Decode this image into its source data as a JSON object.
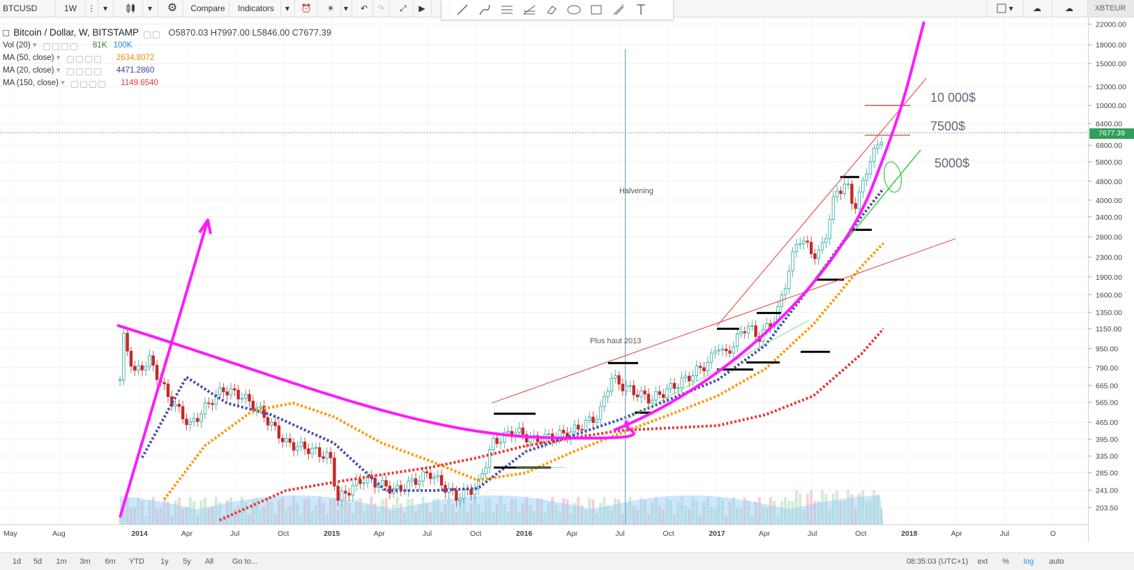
{
  "toolbar": {
    "symbol": "BTCUSD",
    "interval": "1W",
    "compare_label": "Compare",
    "indicators_label": "Indicators",
    "account_label": "XBTEUR"
  },
  "legend": {
    "title": "Bitcoin / Dollar, W, BITSTAMP",
    "open": "O5870.03",
    "high": "H7997.00",
    "low": "L5846.00",
    "close": "C7677.39",
    "vol_label": "Vol (20)",
    "vol_value1": "81K",
    "vol_value2": "100K",
    "ma50_label": "MA (50, close)",
    "ma50_value": "2634.8072",
    "ma20_label": "MA (20, close)",
    "ma20_value": "4471.2860",
    "ma150_label": "MA (150, close)",
    "ma150_value": "1149.6540"
  },
  "annotations": {
    "halvening": "Halvening",
    "high_2013": "Plus haut 2013",
    "target_10000": "10 000$",
    "target_7500": "7500$",
    "target_5000": "5000$"
  },
  "price_label": "7677.39",
  "bottombar": {
    "ranges": [
      "1d",
      "5d",
      "1m",
      "3m",
      "6m",
      "YTD",
      "1y",
      "5y",
      "All"
    ],
    "goto": "Go to...",
    "time": "08:35:03 (UTC+1)",
    "ext": "ext",
    "pct": "%",
    "log": "log",
    "auto": "auto"
  },
  "colors": {
    "up": "#26a69a",
    "down": "#c62828",
    "ma20": "#4d4dad",
    "ma50": "#ff9800",
    "ma150": "#e53935",
    "magenta": "#ff19ff",
    "volume": "#90caf9",
    "accent_log": "#2196f3"
  },
  "chart_data": {
    "type": "line",
    "title": "Bitcoin / Dollar, W, BITSTAMP",
    "xlabel": "",
    "ylabel": "",
    "y_scale": "log",
    "ylim": [
      185,
      22000
    ],
    "x_tick_labels": [
      "May",
      "Aug",
      "2014",
      "Apr",
      "Jul",
      "Oct",
      "2015",
      "Apr",
      "Jul",
      "Oct",
      "2016",
      "Apr",
      "Jul",
      "Oct",
      "2017",
      "Apr",
      "Jul",
      "Oct",
      "2018",
      "Apr",
      "Jul",
      "O"
    ],
    "y_tick_labels": [
      "203.50",
      "241.00",
      "285.00",
      "335.00",
      "395.00",
      "465.00",
      "565.00",
      "665.00",
      "790.00",
      "950.00",
      "1150.00",
      "1350.00",
      "1600.00",
      "1900.00",
      "2300.00",
      "2800.00",
      "3400.00",
      "4000.00",
      "4800.00",
      "5800.00",
      "6800.00",
      "8400.00",
      "10000.00",
      "12000.00",
      "15000.00",
      "18000.00",
      "22000.00"
    ],
    "y_ticks": [
      203.5,
      241,
      285,
      335,
      395,
      465,
      565,
      665,
      790,
      950,
      1150,
      1350,
      1600,
      1900,
      2300,
      2800,
      3400,
      4000,
      4800,
      5800,
      6800,
      8400,
      10000,
      12000,
      15000,
      18000,
      22000
    ],
    "series": [
      {
        "name": "BTCUSD close",
        "x": [
          "2013-11-25",
          "2013-12-02",
          "2013-12-23",
          "2014-01-20",
          "2014-02-24",
          "2014-04-07",
          "2014-05-19",
          "2014-06-09",
          "2014-07-14",
          "2014-08-18",
          "2014-10-06",
          "2014-11-17",
          "2014-12-29",
          "2015-01-12",
          "2015-03-02",
          "2015-05-04",
          "2015-07-06",
          "2015-08-24",
          "2015-10-05",
          "2015-11-02",
          "2015-12-14",
          "2016-01-18",
          "2016-03-28",
          "2016-05-23",
          "2016-06-13",
          "2016-07-11",
          "2016-08-29",
          "2016-10-31",
          "2016-12-19",
          "2017-01-02",
          "2017-01-16",
          "2017-02-27",
          "2017-03-20",
          "2017-04-24",
          "2017-05-22",
          "2017-06-05",
          "2017-07-10",
          "2017-07-24",
          "2017-08-14",
          "2017-09-04",
          "2017-09-18",
          "2017-10-02",
          "2017-10-16",
          "2017-10-30",
          "2017-11-13"
        ],
        "values": [
          700,
          1050,
          750,
          850,
          600,
          450,
          580,
          640,
          600,
          520,
          380,
          360,
          330,
          220,
          270,
          240,
          285,
          225,
          250,
          380,
          430,
          390,
          420,
          500,
          720,
          650,
          580,
          700,
          840,
          1000,
          880,
          1200,
          1050,
          1300,
          2200,
          2800,
          2300,
          2700,
          4300,
          4700,
          3700,
          4400,
          5800,
          6500,
          7677.39
        ]
      },
      {
        "name": "MA (20, close)",
        "x": [
          "2014-01-06",
          "2014-03-31",
          "2014-06-16",
          "2014-09-08",
          "2015-01-05",
          "2015-04-13",
          "2015-07-13",
          "2015-10-05",
          "2016-01-04",
          "2016-04-04",
          "2016-07-04",
          "2016-10-03",
          "2017-01-02",
          "2017-04-03",
          "2017-07-03",
          "2017-10-02",
          "2017-11-13"
        ],
        "values": [
          330,
          720,
          560,
          500,
          380,
          240,
          240,
          245,
          350,
          410,
          480,
          580,
          700,
          980,
          1800,
          3400,
          4471.286
        ]
      },
      {
        "name": "MA (50, close)",
        "x": [
          "2014-02-17",
          "2014-05-05",
          "2014-08-04",
          "2014-10-20",
          "2015-01-05",
          "2015-04-06",
          "2015-07-06",
          "2015-10-05",
          "2016-01-04",
          "2016-04-04",
          "2016-07-04",
          "2016-10-03",
          "2017-01-02",
          "2017-04-03",
          "2017-07-03",
          "2017-10-02",
          "2017-11-13"
        ],
        "values": [
          220,
          370,
          520,
          560,
          490,
          380,
          320,
          265,
          285,
          350,
          420,
          500,
          600,
          780,
          1200,
          2100,
          2634.8072
        ]
      },
      {
        "name": "MA (150, close)",
        "x": [
          "2014-06-02",
          "2014-10-06",
          "2015-01-05",
          "2015-04-06",
          "2015-07-06",
          "2015-10-05",
          "2016-01-04",
          "2016-04-04",
          "2016-07-04",
          "2016-10-03",
          "2017-01-02",
          "2017-04-03",
          "2017-07-03",
          "2017-10-02",
          "2017-11-13"
        ],
        "values": [
          180,
          240,
          260,
          280,
          300,
          330,
          370,
          400,
          430,
          440,
          450,
          500,
          600,
          900,
          1149.654
        ]
      }
    ],
    "annotations": [
      {
        "text": "Halvening",
        "x": "2016-07-11"
      },
      {
        "text": "Plus haut 2013",
        "x": "2016-06-13",
        "y": 1190
      },
      {
        "text": "10 000$",
        "y": 10000
      },
      {
        "text": "7500$",
        "y": 7500
      },
      {
        "text": "5000$",
        "y": 5000
      }
    ],
    "horizontal_levels": [
      {
        "y": 10000,
        "color": "red"
      },
      {
        "y": 7500,
        "color": "red"
      },
      {
        "y": 510,
        "color": "black"
      },
      {
        "y": 300,
        "color": "black"
      },
      {
        "y": 775,
        "color": "black"
      },
      {
        "y": 1150,
        "color": "black"
      },
      {
        "y": 830,
        "color": "black"
      },
      {
        "y": 1340,
        "color": "black"
      },
      {
        "y": 920,
        "color": "black"
      },
      {
        "y": 3000,
        "color": "black"
      },
      {
        "y": 1850,
        "color": "black"
      },
      {
        "y": 5000,
        "color": "black"
      },
      {
        "y": 3000,
        "color": "black"
      }
    ],
    "grid": true
  }
}
